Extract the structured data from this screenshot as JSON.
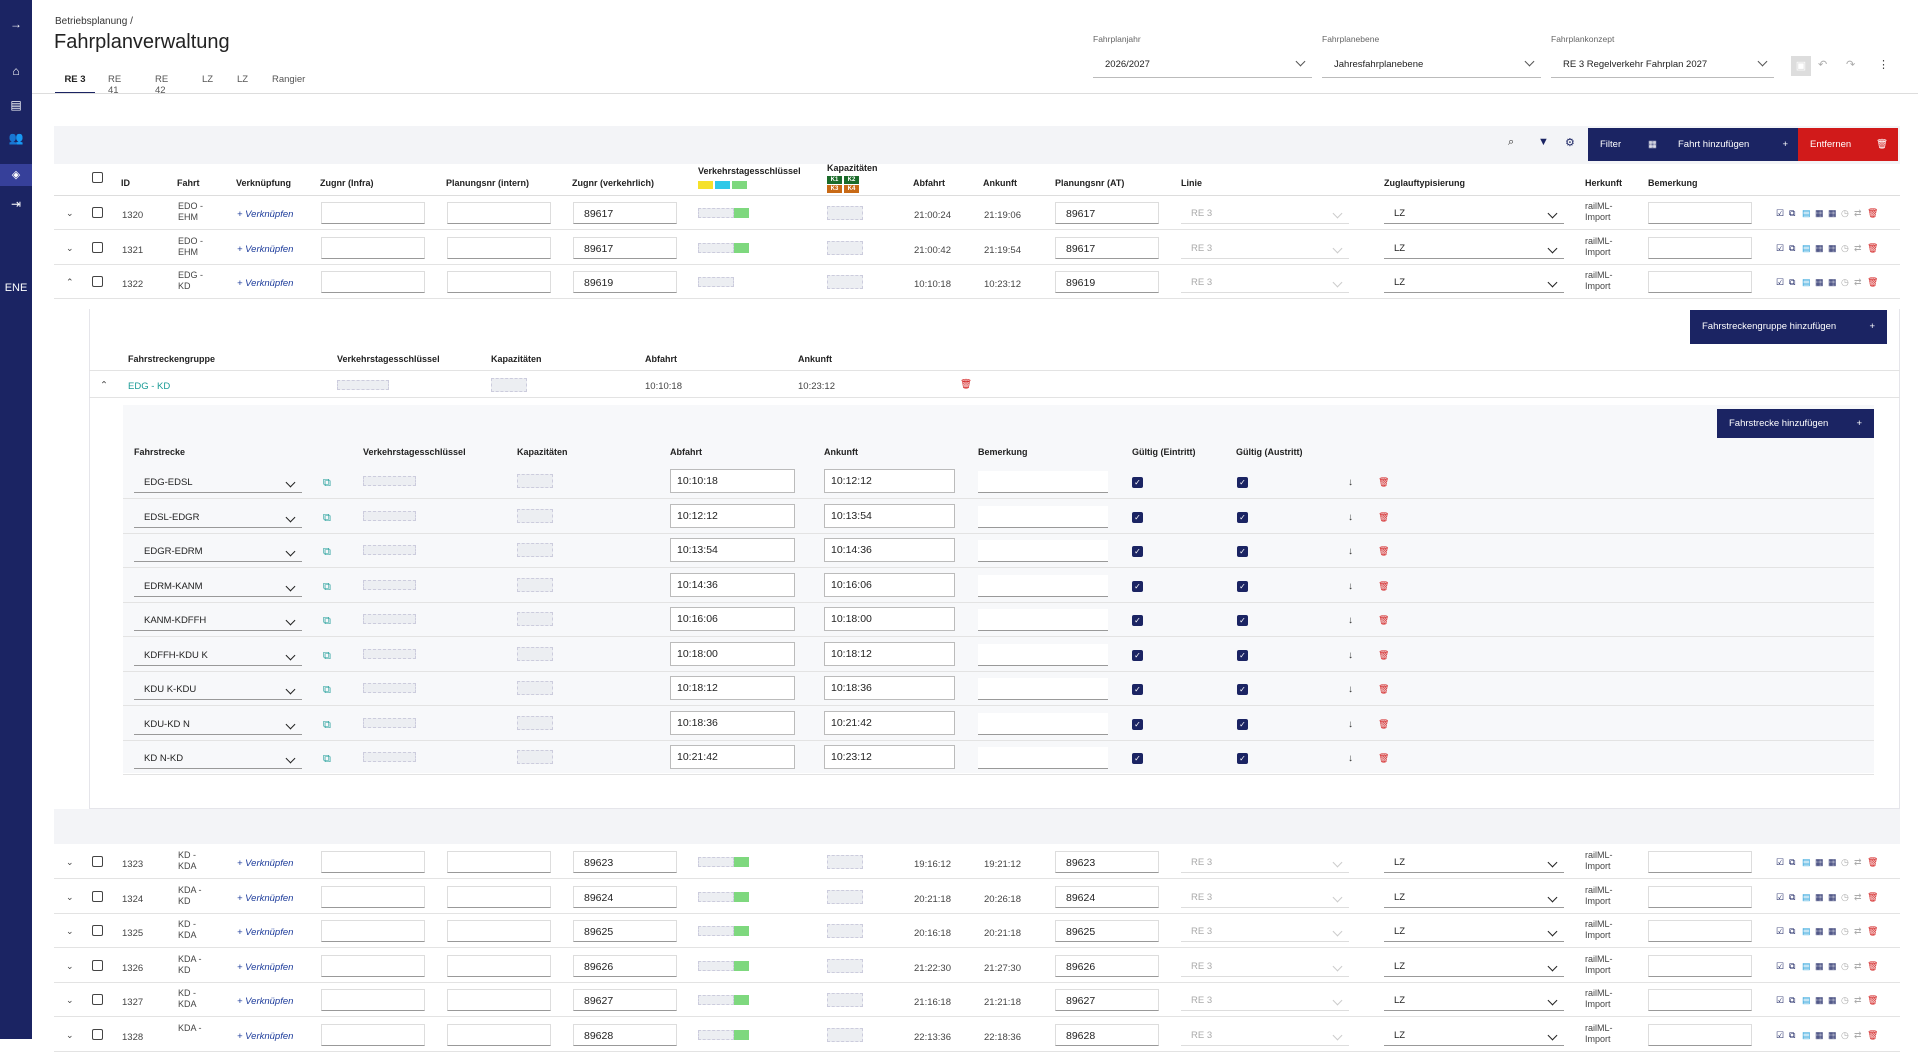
{
  "rail": {
    "expand": "→",
    "lang": "ENE",
    "icons": [
      "home-icon",
      "document-icon",
      "users-icon",
      "map-icon",
      "logout-icon"
    ]
  },
  "breadcrumb": "Betriebsplanung",
  "breadcrumb_sep": "/",
  "title": "Fahrplanverwaltung",
  "tabs": [
    "RE 3",
    "RE 41",
    "RE 42",
    "LZ",
    "LZ",
    "Rangier"
  ],
  "selects": {
    "year": {
      "label": "Fahrplanjahr",
      "value": "2026/2027"
    },
    "level": {
      "label": "Fahrplanebene",
      "value": "Jahresfahrplanebene"
    },
    "concept": {
      "label": "Fahrplankonzept",
      "value": "RE 3 Regelverkehr Fahrplan 2027"
    }
  },
  "toolbar": {
    "filter": "Filter",
    "add_trip": "Fahrt hinzufügen",
    "remove": "Entfernen",
    "plus": "+"
  },
  "table_headers": {
    "id": "ID",
    "fahrt": "Fahrt",
    "link": "Verknüpfung",
    "zug_infra": "Zugnr (Infra)",
    "plan_int": "Planungsnr (intern)",
    "zug_verk": "Zugnr (verkehrlich)",
    "vtk": "Verkehrstagesschlüssel",
    "kap": "Kapazitäten",
    "kap_tags": [
      "K1",
      "K2",
      "K3",
      "K4"
    ],
    "dep": "Abfahrt",
    "arr": "Ankunft",
    "plan_at": "Planungsnr (AT)",
    "linie": "Linie",
    "typ": "Zuglauftypisierung",
    "herkunft": "Herkunft",
    "bem": "Bemerkung"
  },
  "rows_top": [
    {
      "id": "1320",
      "fahrt": [
        "EDO -",
        "EHM"
      ],
      "link": "+ Verknüpfen",
      "zug": "89617",
      "dep": "21:00:24",
      "arr": "21:19:06",
      "plan": "89617",
      "linie": "RE 3",
      "typ": "LZ",
      "herkunft": [
        "railML-",
        "Import"
      ],
      "colors": [
        "#f5e12a",
        "#2ec8e8",
        "#7ed87e"
      ]
    },
    {
      "id": "1321",
      "fahrt": [
        "EDO -",
        "EHM"
      ],
      "link": "+ Verknüpfen",
      "zug": "89617",
      "dep": "21:00:42",
      "arr": "21:19:54",
      "plan": "89617",
      "linie": "RE 3",
      "typ": "LZ",
      "herkunft": [
        "railML-",
        "Import"
      ],
      "colors": [
        "",
        "",
        "#7ed87e"
      ]
    },
    {
      "id": "1322",
      "fahrt": [
        "EDG -",
        "KD"
      ],
      "link": "+ Verknüpfen",
      "zug": "89619",
      "dep": "10:10:18",
      "arr": "10:23:12",
      "plan": "89619",
      "linie": "RE 3",
      "typ": "LZ",
      "herkunft": [
        "railML-",
        "Import"
      ],
      "colors": [
        "",
        "",
        ""
      ]
    }
  ],
  "group": {
    "add_btn": "Fahrstreckengruppe hinzufügen",
    "h_group": "Fahrstreckengruppe",
    "h_vtk": "Verkehrstagesschlüssel",
    "h_kap": "Kapazitäten",
    "h_dep": "Abfahrt",
    "h_arr": "Ankunft",
    "name": "EDG - KD",
    "dep": "10:10:18",
    "arr": "10:23:12"
  },
  "segments": {
    "add_btn": "Fahrstrecke hinzufügen",
    "h": {
      "strecke": "Fahrstrecke",
      "vtk": "Verkehrstagesschlüssel",
      "kap": "Kapazitäten",
      "dep": "Abfahrt",
      "arr": "Ankunft",
      "bem": "Bemerkung",
      "in": "Gültig (Eintritt)",
      "out": "Gültig (Austritt)"
    },
    "items": [
      {
        "name": "EDG-EDSL",
        "dep": "10:10:18",
        "arr": "10:12:12"
      },
      {
        "name": "EDSL-EDGR",
        "dep": "10:12:12",
        "arr": "10:13:54"
      },
      {
        "name": "EDGR-EDRM",
        "dep": "10:13:54",
        "arr": "10:14:36"
      },
      {
        "name": "EDRM-KANM",
        "dep": "10:14:36",
        "arr": "10:16:06"
      },
      {
        "name": "KANM-KDFFH",
        "dep": "10:16:06",
        "arr": "10:18:00"
      },
      {
        "name": "KDFFH-KDU K",
        "dep": "10:18:00",
        "arr": "10:18:12"
      },
      {
        "name": "KDU K-KDU",
        "dep": "10:18:12",
        "arr": "10:18:36"
      },
      {
        "name": "KDU-KD N",
        "dep": "10:18:36",
        "arr": "10:21:42"
      },
      {
        "name": "KD N-KD",
        "dep": "10:21:42",
        "arr": "10:23:12"
      }
    ]
  },
  "rows_bottom": [
    {
      "id": "1323",
      "fahrt": [
        "KD -",
        "KDA"
      ],
      "link": "+ Verknüpfen",
      "zug": "89623",
      "dep": "19:16:12",
      "arr": "19:21:12",
      "plan": "89623",
      "linie": "RE 3",
      "typ": "LZ",
      "herkunft": [
        "railML-",
        "Import"
      ]
    },
    {
      "id": "1324",
      "fahrt": [
        "KDA -",
        "KD"
      ],
      "link": "+ Verknüpfen",
      "zug": "89624",
      "dep": "20:21:18",
      "arr": "20:26:18",
      "plan": "89624",
      "linie": "RE 3",
      "typ": "LZ",
      "herkunft": [
        "railML-",
        "Import"
      ]
    },
    {
      "id": "1325",
      "fahrt": [
        "KD -",
        "KDA"
      ],
      "link": "+ Verknüpfen",
      "zug": "89625",
      "dep": "20:16:18",
      "arr": "20:21:18",
      "plan": "89625",
      "linie": "RE 3",
      "typ": "LZ",
      "herkunft": [
        "railML-",
        "Import"
      ]
    },
    {
      "id": "1326",
      "fahrt": [
        "KDA -",
        "KD"
      ],
      "link": "+ Verknüpfen",
      "zug": "89626",
      "dep": "21:22:30",
      "arr": "21:27:30",
      "plan": "89626",
      "linie": "RE 3",
      "typ": "LZ",
      "herkunft": [
        "railML-",
        "Import"
      ]
    },
    {
      "id": "1327",
      "fahrt": [
        "KD -",
        "KDA"
      ],
      "link": "+ Verknüpfen",
      "zug": "89627",
      "dep": "21:16:18",
      "arr": "21:21:18",
      "plan": "89627",
      "linie": "RE 3",
      "typ": "LZ",
      "herkunft": [
        "railML-",
        "Import"
      ]
    },
    {
      "id": "1328",
      "fahrt": [
        "KDA -",
        ""
      ],
      "link": "+ Verknüpfen",
      "zug": "89628",
      "dep": "22:13:36",
      "arr": "22:18:36",
      "plan": "89628",
      "linie": "RE 3",
      "typ": "LZ",
      "herkunft": [
        "railML-",
        "Import"
      ]
    }
  ]
}
